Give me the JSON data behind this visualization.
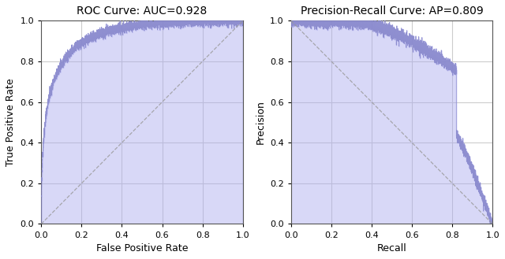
{
  "roc_title": "ROC Curve: AUC=0.928",
  "roc_xlabel": "False Positive Rate",
  "roc_ylabel": "True Positive Rate",
  "pr_title": "Precision-Recall Curve: AP=0.809",
  "pr_xlabel": "Recall",
  "pr_ylabel": "Precision",
  "fill_color": "#aaaaee",
  "fill_alpha": 0.45,
  "curve_color": "#8888cc",
  "curve_alpha": 0.9,
  "diag_color": "#999999",
  "diag_style": "--",
  "diag_alpha": 0.8,
  "grid_color": "#cccccc",
  "bg_color": "#ffffff",
  "xlim": [
    0.0,
    1.0
  ],
  "ylim": [
    0.0,
    1.0
  ],
  "tick_vals": [
    0.0,
    0.2,
    0.4,
    0.6,
    0.8,
    1.0
  ],
  "auc": 0.928,
  "ap": 0.809,
  "figsize": [
    6.4,
    3.29
  ],
  "dpi": 100
}
